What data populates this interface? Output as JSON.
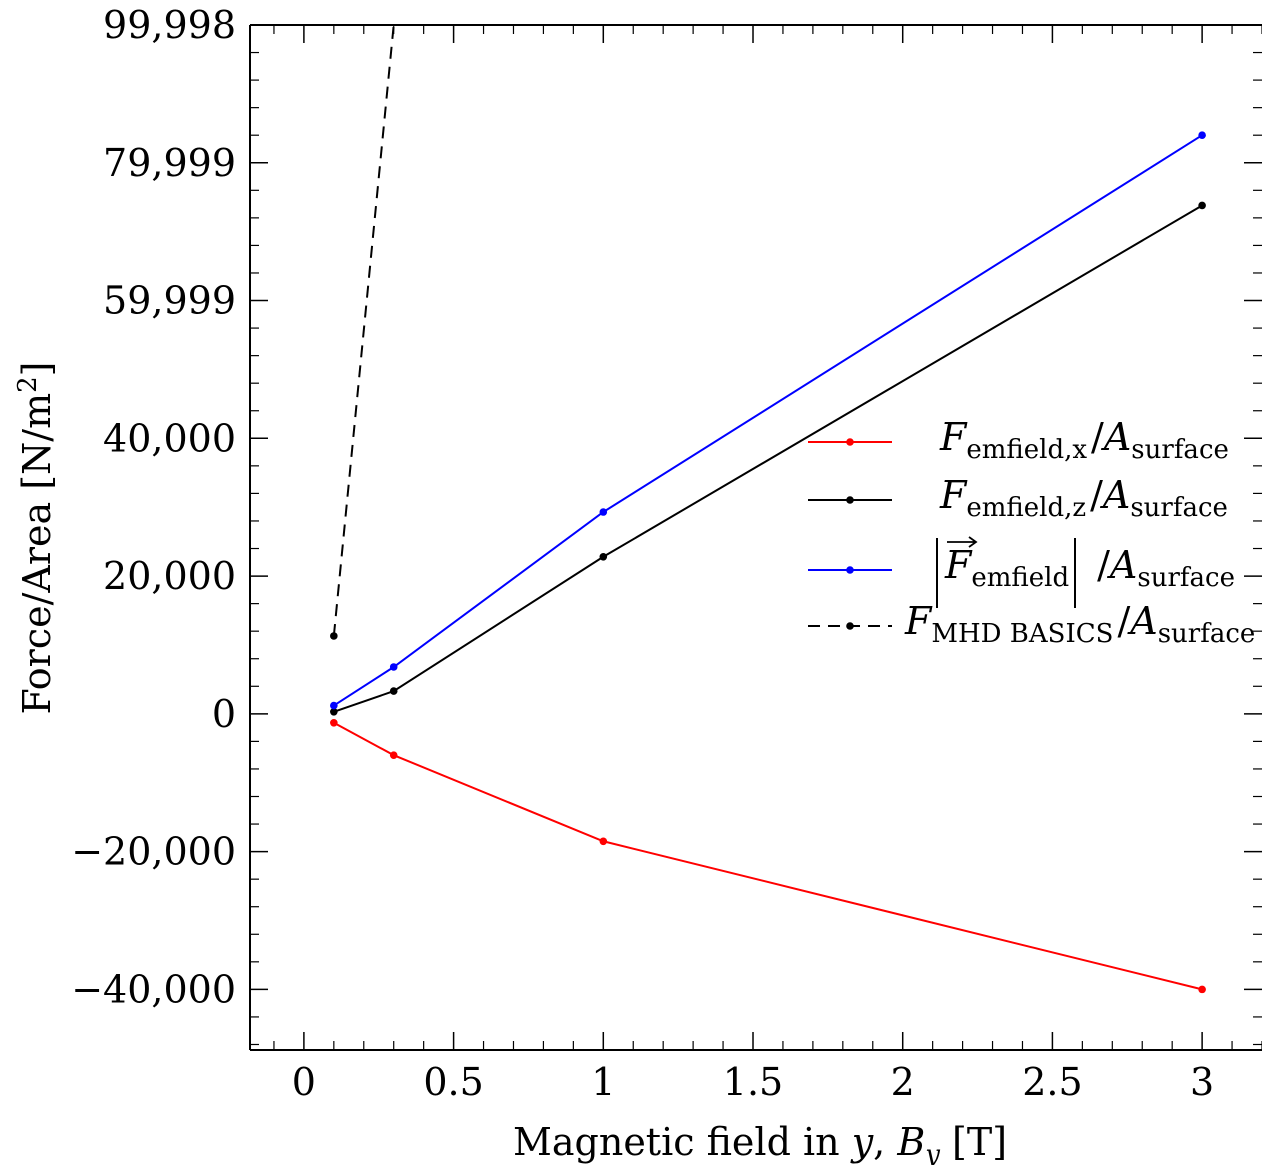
{
  "chart_data": {
    "type": "line",
    "title": "",
    "xlabel": {
      "text": "Magnetic field in ",
      "var_y": "y",
      "sep": ", ",
      "var_B": "B",
      "sub": "y",
      "unit": " [T]"
    },
    "ylabel": {
      "text": "Force/Area [N/m",
      "sup": "2",
      "close": "]"
    },
    "xlim": [
      -0.18,
      3.2
    ],
    "ylim": [
      -48800,
      99998
    ],
    "xticks": [
      0,
      0.5,
      1,
      1.5,
      2,
      2.5,
      3
    ],
    "xtick_labels": [
      "0",
      "0.5",
      "1",
      "1.5",
      "2",
      "2.5",
      "3"
    ],
    "yticks": [
      -40000,
      -20000,
      0,
      20000,
      40000,
      59999,
      79999,
      99998
    ],
    "ytick_labels": [
      "−40,000",
      "−20,000",
      "0",
      "20,000",
      "40,000",
      "59,999",
      "79,999",
      "99,998"
    ],
    "grid": false,
    "legend_position": "right",
    "series": [
      {
        "name": "F_emfield,x / A_surface",
        "color": "#ff0000",
        "dash": "solid",
        "x": [
          0.1,
          0.3,
          1,
          3
        ],
        "y": [
          -1300,
          -6000,
          -18500,
          -40000
        ],
        "legend": {
          "F": "F",
          "sub": "emfield,x",
          "slash": "/",
          "A": "A",
          "asub": "surface"
        }
      },
      {
        "name": "F_emfield,z / A_surface",
        "color": "#000000",
        "dash": "solid",
        "x": [
          0.1,
          0.3,
          1,
          3
        ],
        "y": [
          300,
          3300,
          22800,
          73800
        ],
        "legend": {
          "F": "F",
          "sub": "emfield,z",
          "slash": "/",
          "A": "A",
          "asub": "surface"
        }
      },
      {
        "name": "|F_emfield| / A_surface",
        "color": "#0000ff",
        "dash": "solid",
        "x": [
          0.1,
          0.3,
          1,
          3
        ],
        "y": [
          1200,
          6800,
          29300,
          84000
        ],
        "legend": {
          "F": "F",
          "sub": "emfield",
          "slash": "/",
          "A": "A",
          "asub": "surface"
        }
      },
      {
        "name": "F_MHD BASICS / A_surface",
        "color": "#000000",
        "dash": "dashed",
        "x": [
          0.1,
          0.3
        ],
        "y": [
          11300,
          100000
        ],
        "legend": {
          "F": "F",
          "sub": "MHD BASICS",
          "slash": "/",
          "A": "A",
          "asub": "surface"
        }
      }
    ]
  }
}
